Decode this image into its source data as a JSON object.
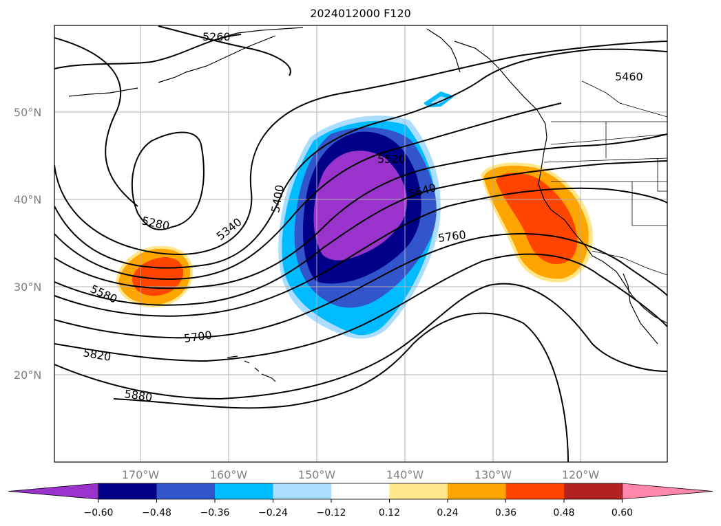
{
  "title": "2024012000 F120",
  "lat_labels": [
    "50°N",
    "40°N",
    "30°N",
    "20°N"
  ],
  "lon_labels": [
    "170°W",
    "160°W",
    "150°W",
    "140°W",
    "130°W",
    "120°W"
  ],
  "contour_labels": [
    "5260",
    "5460",
    "5520",
    "5640",
    "5400",
    "5280",
    "5340",
    "5760",
    "5580",
    "5700",
    "5820",
    "5880"
  ],
  "colorbar": {
    "ticks": [
      "−0.60",
      "−0.48",
      "−0.36",
      "−0.24",
      "−0.12",
      "0.12",
      "0.24",
      "0.36",
      "0.48",
      "0.60"
    ],
    "colors": [
      "#9933cc",
      "#000088",
      "#3355cc",
      "#00bbff",
      "#aaddff",
      "#ffffff",
      "#ffe68a",
      "#ffa500",
      "#ff4500",
      "#b22222",
      "#ff88aa"
    ]
  }
}
